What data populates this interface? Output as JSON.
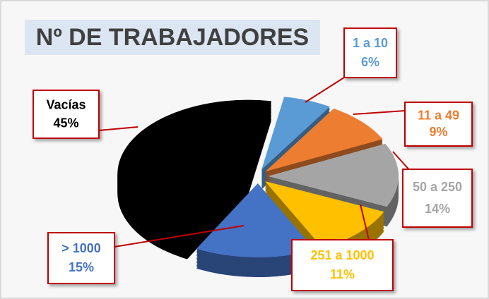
{
  "chart_data": {
    "type": "pie",
    "title": "Nº DE TRABAJADORES",
    "categories": [
      "1 a 10",
      "11 a 49",
      "50 a 250",
      "251 a 1000",
      "> 1000",
      "Vacías"
    ],
    "values": [
      6,
      9,
      14,
      11,
      15,
      45
    ],
    "value_labels": [
      "6%",
      "9%",
      "14%",
      "11%",
      "15%",
      "45%"
    ],
    "colors": [
      "#5b9bd5",
      "#ed7d31",
      "#a5a5a5",
      "#ffc000",
      "#4472c4",
      "#000000"
    ]
  }
}
